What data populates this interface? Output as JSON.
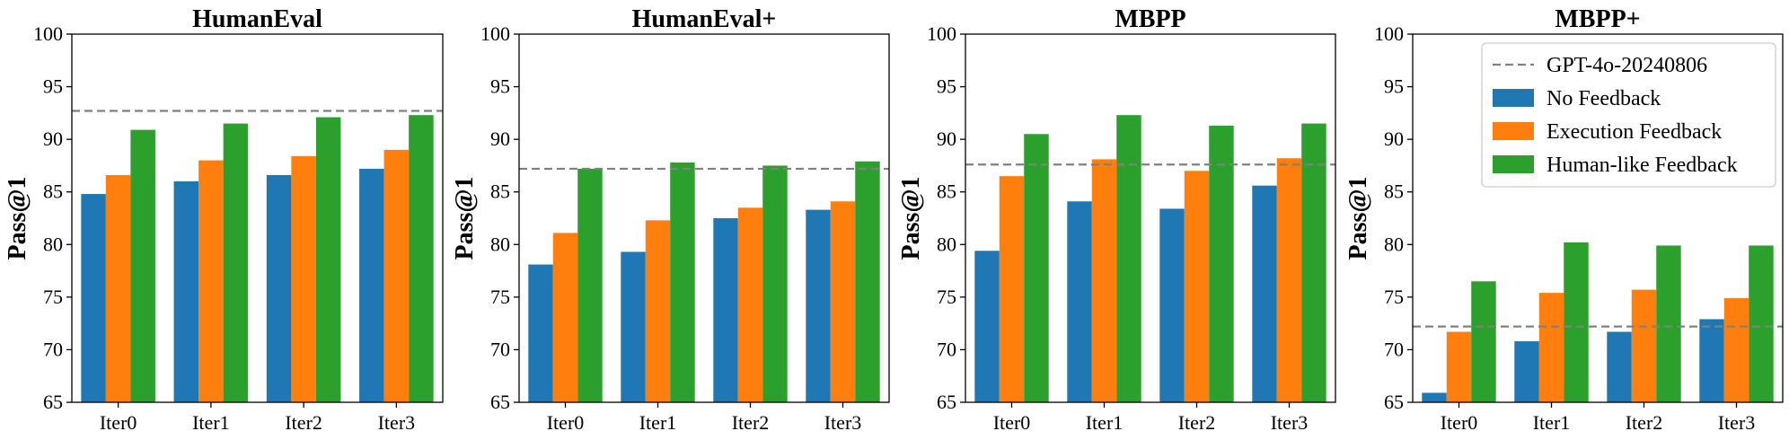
{
  "colors": {
    "no_feedback": "#1f77b4",
    "execution_feedback": "#ff7f0e",
    "human_like_feedback": "#2ca02c",
    "reference_line": "#808080"
  },
  "legend": {
    "reference": "GPT-4o-20240806",
    "series": [
      "No Feedback",
      "Execution Feedback",
      "Human-like Feedback"
    ]
  },
  "chart_data": [
    {
      "type": "bar",
      "title": "HumanEval",
      "xlabel": "",
      "ylabel": "Pass@1",
      "ylim": [
        65,
        100
      ],
      "yticks": [
        65,
        70,
        75,
        80,
        85,
        90,
        95,
        100
      ],
      "categories": [
        "Iter0",
        "Iter1",
        "Iter2",
        "Iter3"
      ],
      "series": [
        {
          "name": "No Feedback",
          "values": [
            84.8,
            86.0,
            86.6,
            87.2
          ]
        },
        {
          "name": "Execution Feedback",
          "values": [
            86.6,
            88.0,
            88.4,
            89.0
          ]
        },
        {
          "name": "Human-like Feedback",
          "values": [
            90.9,
            91.5,
            92.1,
            92.3
          ]
        }
      ],
      "reference": {
        "name": "GPT-4o-20240806",
        "value": 92.7
      }
    },
    {
      "type": "bar",
      "title": "HumanEval+",
      "xlabel": "",
      "ylabel": "Pass@1",
      "ylim": [
        65,
        100
      ],
      "yticks": [
        65,
        70,
        75,
        80,
        85,
        90,
        95,
        100
      ],
      "categories": [
        "Iter0",
        "Iter1",
        "Iter2",
        "Iter3"
      ],
      "series": [
        {
          "name": "No Feedback",
          "values": [
            78.1,
            79.3,
            82.5,
            83.3
          ]
        },
        {
          "name": "Execution Feedback",
          "values": [
            81.1,
            82.3,
            83.5,
            84.1
          ]
        },
        {
          "name": "Human-like Feedback",
          "values": [
            87.2,
            87.8,
            87.5,
            87.9
          ]
        }
      ],
      "reference": {
        "name": "GPT-4o-20240806",
        "value": 87.2
      }
    },
    {
      "type": "bar",
      "title": "MBPP",
      "xlabel": "",
      "ylabel": "Pass@1",
      "ylim": [
        65,
        100
      ],
      "yticks": [
        65,
        70,
        75,
        80,
        85,
        90,
        95,
        100
      ],
      "categories": [
        "Iter0",
        "Iter1",
        "Iter2",
        "Iter3"
      ],
      "series": [
        {
          "name": "No Feedback",
          "values": [
            79.4,
            84.1,
            83.4,
            85.6
          ]
        },
        {
          "name": "Execution Feedback",
          "values": [
            86.5,
            88.1,
            87.0,
            88.2
          ]
        },
        {
          "name": "Human-like Feedback",
          "values": [
            90.5,
            92.3,
            91.3,
            91.5
          ]
        }
      ],
      "reference": {
        "name": "GPT-4o-20240806",
        "value": 87.6
      }
    },
    {
      "type": "bar",
      "title": "MBPP+",
      "xlabel": "",
      "ylabel": "Pass@1",
      "ylim": [
        65,
        100
      ],
      "yticks": [
        65,
        70,
        75,
        80,
        85,
        90,
        95,
        100
      ],
      "categories": [
        "Iter0",
        "Iter1",
        "Iter2",
        "Iter3"
      ],
      "series": [
        {
          "name": "No Feedback",
          "values": [
            65.9,
            70.8,
            71.7,
            72.9
          ]
        },
        {
          "name": "Execution Feedback",
          "values": [
            71.7,
            75.4,
            75.7,
            74.9
          ]
        },
        {
          "name": "Human-like Feedback",
          "values": [
            76.5,
            80.2,
            79.9,
            79.9
          ]
        }
      ],
      "reference": {
        "name": "GPT-4o-20240806",
        "value": 72.2
      },
      "legend_position": "top-right"
    }
  ]
}
